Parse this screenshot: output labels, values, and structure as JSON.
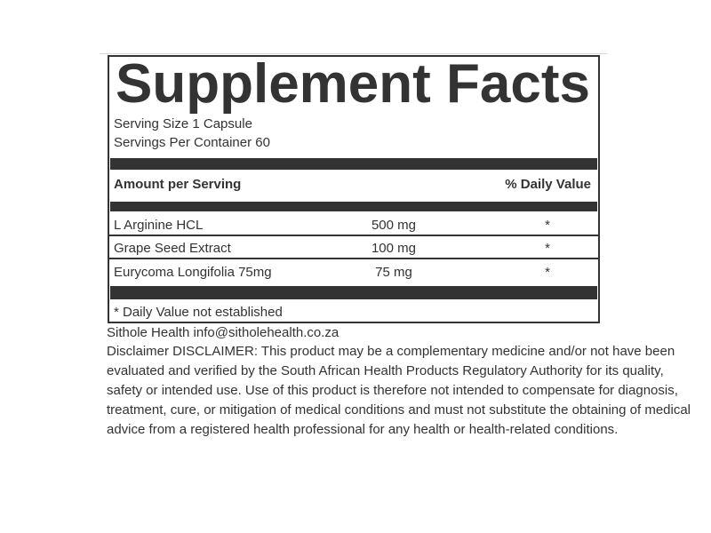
{
  "label": {
    "title": "Supplement Facts",
    "serving_size": "Serving Size 1 Capsule",
    "servings_per_container": "Servings Per Container 60",
    "columns": {
      "amount_header": "Amount per Serving",
      "daily_value_header": "% Daily Value"
    },
    "rows": [
      {
        "name": "L Arginine HCL",
        "amount": "500 mg",
        "daily_value": "*"
      },
      {
        "name": "Grape Seed Extract",
        "amount": "100 mg",
        "daily_value": "*"
      },
      {
        "name": "Eurycoma Longifolia 75mg",
        "amount": "75 mg",
        "daily_value": "*"
      }
    ],
    "footnote": "* Daily Value not established"
  },
  "footer": {
    "brand_line": "Sithole Health info@sitholehealth.co.za",
    "disclaimer_lines": [
      "Disclaimer DISCLAIMER: This product may be a complementary medicine and/or not have been",
      "evaluated and verified by the South African Health Products Regulatory Authority for its quality,",
      "safety or intended use. Use of this product is therefore not intended to compensate for diagnosis,",
      "treatment, cure, or mitigation of medical conditions and must not substitute the obtaining of medical",
      "advice from a registered health professional for any health or health-related conditions."
    ]
  },
  "colors": {
    "ink": "#333333",
    "divider_light": "#d9d9d9",
    "background": "#ffffff"
  }
}
